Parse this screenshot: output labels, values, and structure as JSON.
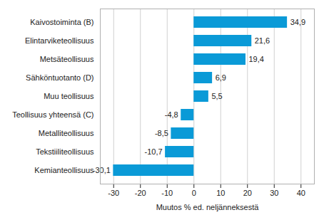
{
  "chart_data": {
    "type": "bar",
    "orientation": "horizontal",
    "categories": [
      "Kaivostoiminta (B)",
      "Elintarviketeollisuus",
      "Metsäteollisuus",
      "Sähköntuotanto (D)",
      "Muu teollisuus",
      "Teollisuus yhteensä (C)",
      "Metalliteollisuus",
      "Tekstiiliteollisuus",
      "Kemianteollisuus"
    ],
    "values": [
      34.9,
      21.6,
      19.4,
      6.9,
      5.5,
      -4.8,
      -8.5,
      -10.7,
      -30.1
    ],
    "value_labels": [
      "34,9",
      "21,6",
      "19,4",
      "6,9",
      "5,5",
      "-4,8",
      "-8,5",
      "-10,7",
      "-30,1"
    ],
    "data_labels": true,
    "color": "#0a9ad7",
    "xlabel": "Muutos % ed. neljänneksestä",
    "xlim": [
      -35,
      45
    ],
    "xticks": [
      -30,
      -20,
      -10,
      0,
      10,
      20,
      30,
      40
    ],
    "grid": true
  }
}
